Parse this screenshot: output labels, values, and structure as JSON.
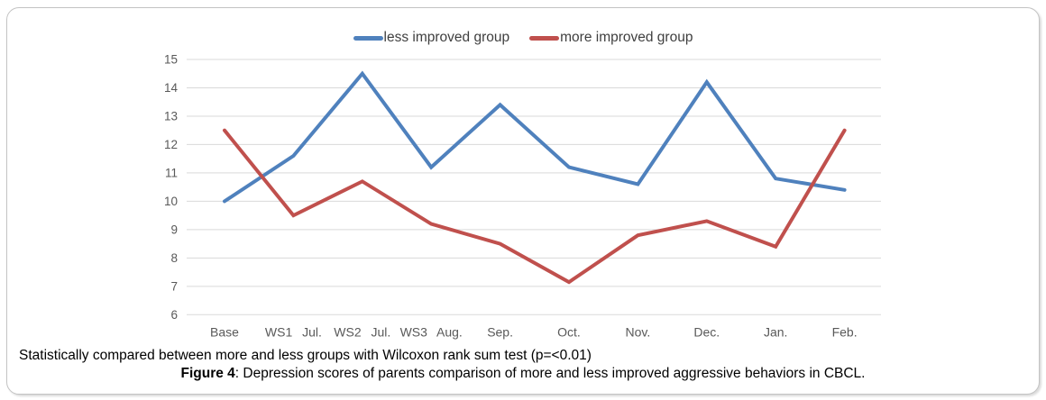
{
  "legend": {
    "items": [
      {
        "label": "less improved group",
        "color": "#4F81BD"
      },
      {
        "label": "more improved group",
        "color": "#C0504D"
      }
    ]
  },
  "caption": {
    "line1": "Statistically compared between more and less groups with Wilcoxon rank sum test (p=<0.01)",
    "figure_label": "Figure 4",
    "figure_text": ": Depression scores of parents comparison of more and less improved aggressive behaviors in CBCL."
  },
  "chart_data": {
    "type": "line",
    "title": "",
    "xlabel": "",
    "ylabel": "",
    "categories": [
      "Base",
      "WS1 Jul.",
      "WS2 Jul.",
      "WS3 Aug.",
      "Sep.",
      "Oct.",
      "Nov.",
      "Dec.",
      "Jan.",
      "Feb."
    ],
    "series": [
      {
        "name": "less improved group",
        "color": "#4F81BD",
        "values": [
          10.0,
          11.6,
          14.5,
          11.2,
          13.4,
          11.2,
          10.6,
          14.2,
          10.8,
          10.4
        ]
      },
      {
        "name": "more improved group",
        "color": "#C0504D",
        "values": [
          12.5,
          9.5,
          10.7,
          9.2,
          8.5,
          7.15,
          8.8,
          9.3,
          8.4,
          12.5
        ]
      }
    ],
    "ylim": [
      6,
      15
    ],
    "yticks": [
      6,
      7,
      8,
      9,
      10,
      11,
      12,
      13,
      14,
      15
    ],
    "grid": "horizontal",
    "gridline_color": "#d9d9d9",
    "axis_text_color": "#595959",
    "legend_position": "top-center"
  }
}
